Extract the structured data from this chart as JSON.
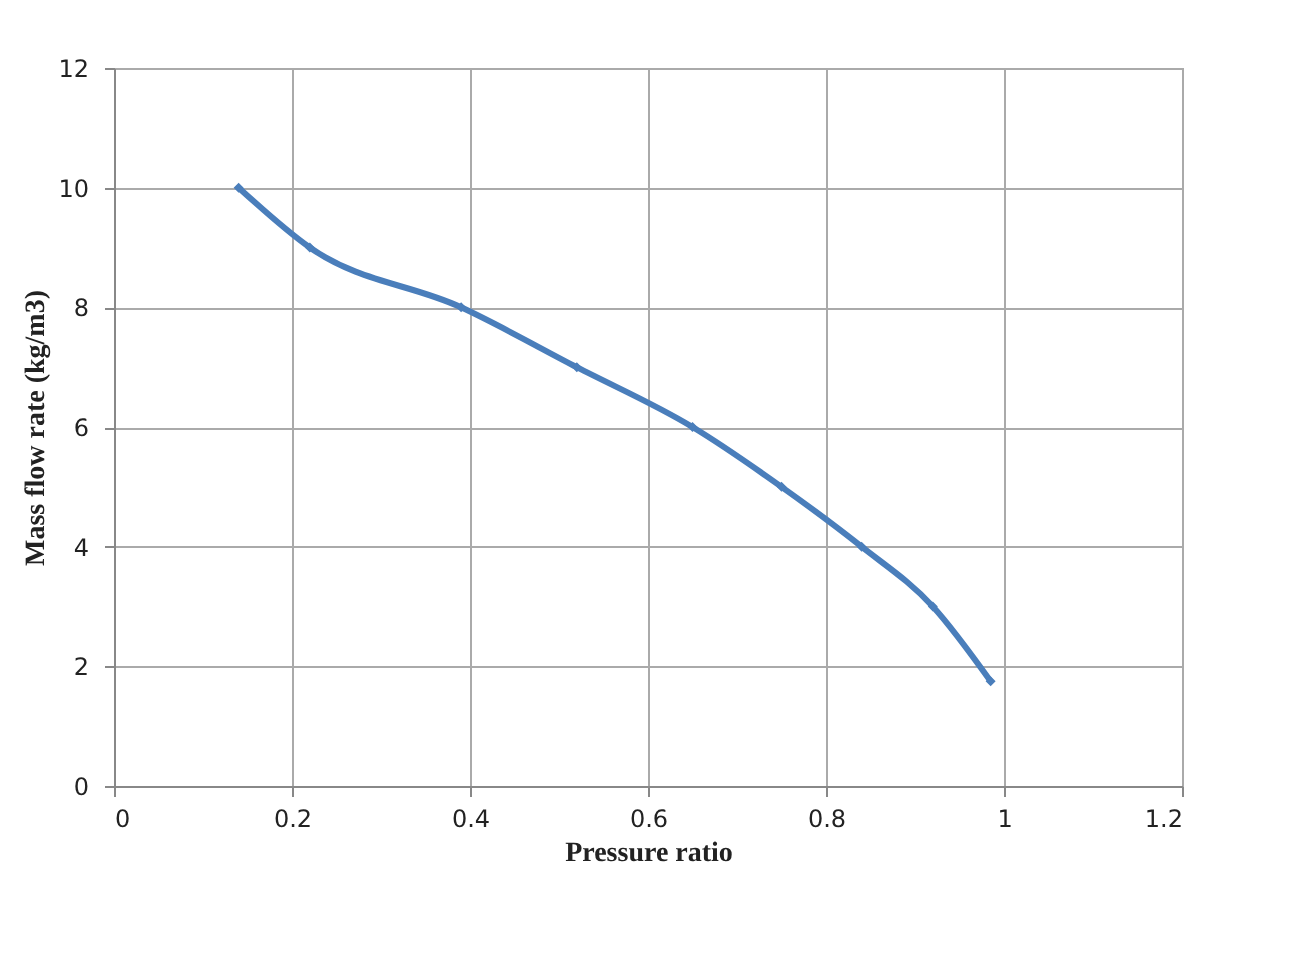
{
  "chart_data": {
    "type": "line",
    "xlabel": "Pressure ratio",
    "ylabel": "Mass flow rate (kg/m3)",
    "x": [
      0.14,
      0.22,
      0.39,
      0.52,
      0.65,
      0.75,
      0.84,
      0.92,
      0.985
    ],
    "series": [
      {
        "color": "#4a7ebb",
        "values": [
          10,
          9,
          8,
          7,
          6,
          5,
          4,
          3,
          1.75
        ]
      }
    ],
    "xlim": [
      0,
      1.2
    ],
    "xticks": [
      0,
      0.2,
      0.4,
      0.6,
      0.8,
      1,
      1.2
    ],
    "ylim": [
      0,
      12
    ],
    "yticks": [
      0,
      2,
      4,
      6,
      8,
      10,
      12
    ],
    "grid": true,
    "marker": "diamond",
    "line_style": "solid"
  }
}
